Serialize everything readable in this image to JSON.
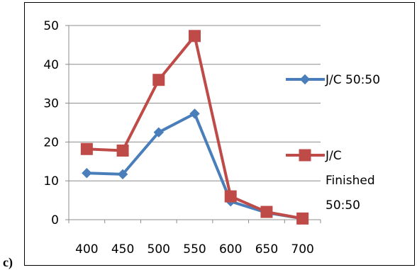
{
  "panel_label": "c)",
  "chart_data": {
    "type": "line",
    "categories": [
      "400",
      "450",
      "500",
      "550",
      "600",
      "650",
      "700"
    ],
    "ylim": [
      0,
      50
    ],
    "yticks": [
      "0",
      "10",
      "20",
      "30",
      "40",
      "50"
    ],
    "grid": true,
    "legend_position": "right",
    "series": [
      {
        "name": "J/C  50:50",
        "name_lines": [
          "J/C  50:50"
        ],
        "color": "#4a7ebb",
        "marker": "diamond",
        "values": [
          12,
          11.7,
          22.5,
          27.3,
          4.7,
          1.8,
          0.3
        ]
      },
      {
        "name": "J/C Finished 50:50",
        "name_lines": [
          "J/C",
          "Finished",
          "50:50"
        ],
        "color": "#be4b48",
        "marker": "square",
        "values": [
          18.2,
          17.8,
          36,
          47.3,
          6,
          2,
          0.3
        ]
      }
    ]
  }
}
